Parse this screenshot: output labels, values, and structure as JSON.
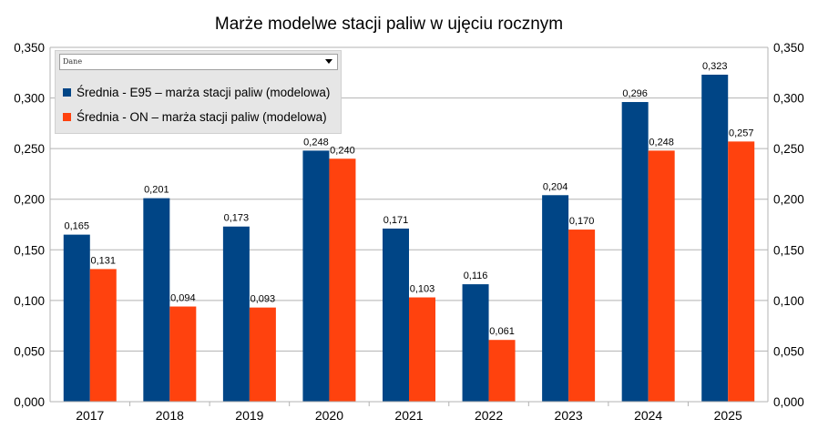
{
  "chart_data": {
    "type": "bar",
    "title": "Marże modelwe stacji paliw w ujęciu rocznym",
    "categories": [
      "2017",
      "2018",
      "2019",
      "2020",
      "2021",
      "2022",
      "2023",
      "2024",
      "2025"
    ],
    "series": [
      {
        "name": "Średnia - E95 – marża stacji paliw (modelowa)",
        "color": "#004586",
        "values": [
          0.165,
          0.201,
          0.173,
          0.248,
          0.171,
          0.116,
          0.204,
          0.296,
          0.323
        ],
        "labels": [
          "0,165",
          "0,201",
          "0,173",
          "0,248",
          "0,171",
          "0,116",
          "0,204",
          "0,296",
          "0,323"
        ]
      },
      {
        "name": "Średnia - ON – marża stacji paliw (modelowa)",
        "color": "#ff420e",
        "values": [
          0.131,
          0.094,
          0.093,
          0.24,
          0.103,
          0.061,
          0.17,
          0.248,
          0.257
        ],
        "labels": [
          "0,131",
          "0,094",
          "0,093",
          "0,240",
          "0,103",
          "0,061",
          "0,170",
          "0,248",
          "0,257"
        ]
      }
    ],
    "ylim": [
      0,
      0.35
    ],
    "yticks": [
      0,
      0.05,
      0.1,
      0.15,
      0.2,
      0.25,
      0.3,
      0.35
    ],
    "ytick_labels": [
      "0,000",
      "0,050",
      "0,100",
      "0,150",
      "0,200",
      "0,250",
      "0,300",
      "0,350"
    ],
    "secondary_axis": true,
    "grid": true,
    "legend_position": "top-left"
  },
  "legend": {
    "select_label": "Dane"
  }
}
